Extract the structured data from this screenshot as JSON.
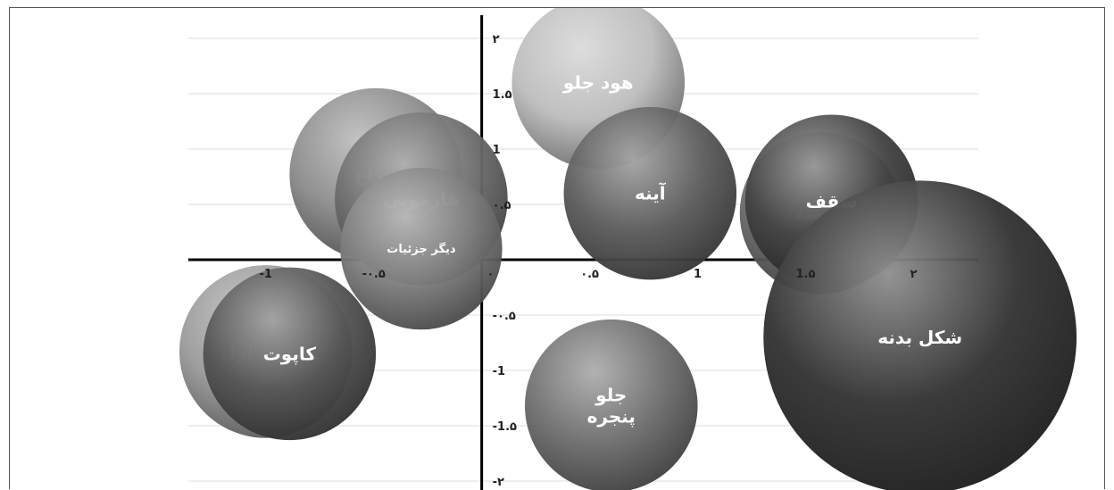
{
  "chart_data": {
    "type": "bubble",
    "title": "",
    "xlabel": "",
    "ylabel": "",
    "xlim": [
      -1.4,
      2.3
    ],
    "ylim": [
      -2.0,
      2.0
    ],
    "grid": "horizontal",
    "x_ticks": [
      {
        "value": -1,
        "label": "-1"
      },
      {
        "value": -0.5,
        "label": "-۰.۵"
      },
      {
        "value": 0,
        "label": "۰"
      },
      {
        "value": 0.5,
        "label": "۰.۵"
      },
      {
        "value": 1,
        "label": "1"
      },
      {
        "value": 1.5,
        "label": "1.۵"
      },
      {
        "value": 2,
        "label": "۲"
      }
    ],
    "y_ticks": [
      {
        "value": 2,
        "label": "۲"
      },
      {
        "value": 1.5,
        "label": "1.۵"
      },
      {
        "value": 1,
        "label": "1"
      },
      {
        "value": 0.5,
        "label": "۰.۵"
      },
      {
        "value": -0.5,
        "label": "-۰.۵"
      },
      {
        "value": -1,
        "label": "-1"
      },
      {
        "value": -1.5,
        "label": "-1.۵"
      },
      {
        "value": -2,
        "label": "-۲"
      }
    ],
    "points": [
      {
        "label": "هود جلو",
        "lines": [
          "هود جلو"
        ],
        "x": 0.54,
        "y": 1.6,
        "size": 0.8,
        "color": "#bdbdbd"
      },
      {
        "label": "چراغ",
        "lines": [
          "چراغ"
        ],
        "x": -0.49,
        "y": 0.77,
        "size": 0.8,
        "color": "#8c8c8c"
      },
      {
        "label": "هارمونی",
        "lines": [
          "هارمونی"
        ],
        "x": -0.28,
        "y": 0.55,
        "size": 0.8,
        "color": "#6e6e6e"
      },
      {
        "label": "دیگر جزئیات",
        "lines": [
          "دیگر جزئیات"
        ],
        "x": -0.28,
        "y": 0.1,
        "size": 0.75,
        "color": "#7f7f7f"
      },
      {
        "label": "آینه",
        "lines": [
          "آینه"
        ],
        "x": 0.78,
        "y": 0.6,
        "size": 0.8,
        "color": "#5c5c5c"
      },
      {
        "label": "شیشه",
        "lines": [
          "شیشه"
        ],
        "x": 1.57,
        "y": 0.42,
        "size": 0.75,
        "color": "#6a6a6a"
      },
      {
        "label": "سقف",
        "lines": [
          "سقف"
        ],
        "x": 1.62,
        "y": 0.53,
        "size": 0.8,
        "color": "#444444"
      },
      {
        "label": "شکل بدنه",
        "lines": [
          "شکل بدنه"
        ],
        "x": 2.03,
        "y": -0.7,
        "size": 1.45,
        "color": "#333333"
      },
      {
        "label": "ستون اول",
        "lines": [
          "ستون اول"
        ],
        "x": -1.0,
        "y": -0.83,
        "size": 0.8,
        "color": "#9a9a9a"
      },
      {
        "label": "کاپوت",
        "lines": [
          "کاپوت"
        ],
        "x": -0.89,
        "y": -0.85,
        "size": 0.8,
        "color": "#555555"
      },
      {
        "label": "جلو پنجره",
        "lines": [
          "جلو",
          "پنجره"
        ],
        "x": 0.6,
        "y": -1.32,
        "size": 0.8,
        "color": "#6e6e6e"
      }
    ]
  }
}
